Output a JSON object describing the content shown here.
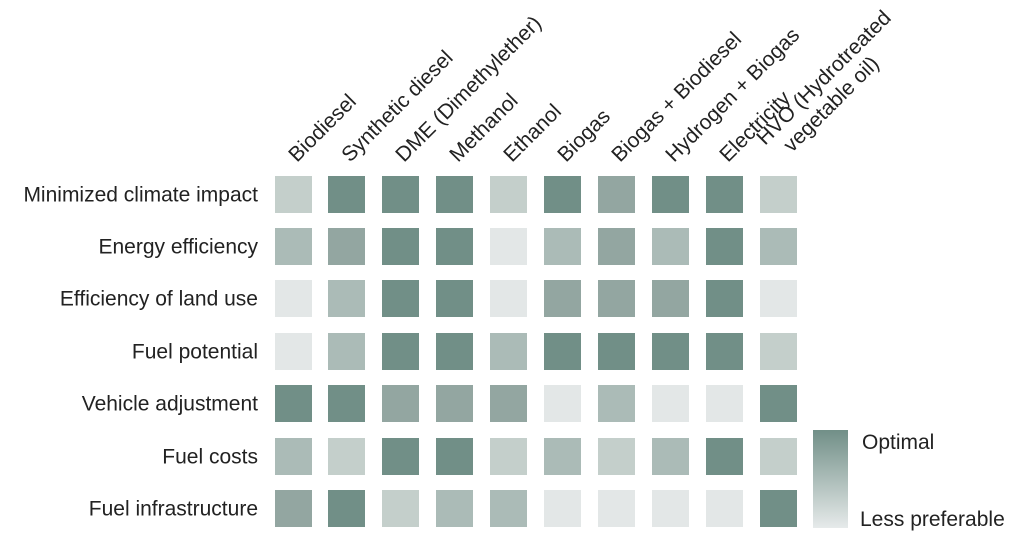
{
  "chart_data": {
    "type": "heatmap",
    "title": "",
    "columns": [
      {
        "lines": [
          "Biodiesel"
        ]
      },
      {
        "lines": [
          "Synthetic diesel"
        ]
      },
      {
        "lines": [
          "DME (Dimethylether)"
        ]
      },
      {
        "lines": [
          "Methanol"
        ]
      },
      {
        "lines": [
          "Ethanol"
        ]
      },
      {
        "lines": [
          "Biogas"
        ]
      },
      {
        "lines": [
          "Biogas + Biodiesel"
        ]
      },
      {
        "lines": [
          "Hydrogen + Biogas"
        ]
      },
      {
        "lines": [
          "Electricity"
        ]
      },
      {
        "lines": [
          "HVO (Hydrotreated",
          "vegetable oil)"
        ]
      }
    ],
    "rows": [
      "Minimized climate impact",
      "Energy efficiency",
      "Efficiency of land use",
      "Fuel potential",
      "Vehicle adjustment",
      "Fuel costs",
      "Fuel infrastructure"
    ],
    "scale": {
      "min": 0,
      "max": 4,
      "min_label": "Less preferable",
      "max_label": "Optimal"
    },
    "values": [
      [
        1,
        4,
        4,
        4,
        1,
        4,
        3,
        4,
        4,
        1
      ],
      [
        2,
        3,
        4,
        4,
        0,
        2,
        3,
        2,
        4,
        2
      ],
      [
        0,
        2,
        4,
        4,
        0,
        3,
        3,
        3,
        4,
        0
      ],
      [
        0,
        2,
        4,
        4,
        2,
        4,
        4,
        4,
        4,
        1
      ],
      [
        4,
        4,
        3,
        3,
        3,
        0,
        2,
        0,
        0,
        4
      ],
      [
        2,
        1,
        4,
        4,
        1,
        2,
        1,
        2,
        4,
        1
      ],
      [
        3,
        4,
        1,
        2,
        2,
        0,
        0,
        0,
        0,
        4
      ]
    ],
    "colors": [
      "#e3e7e7",
      "#c4cfcb",
      "#abbbb7",
      "#93a6a1",
      "#718f87"
    ]
  }
}
